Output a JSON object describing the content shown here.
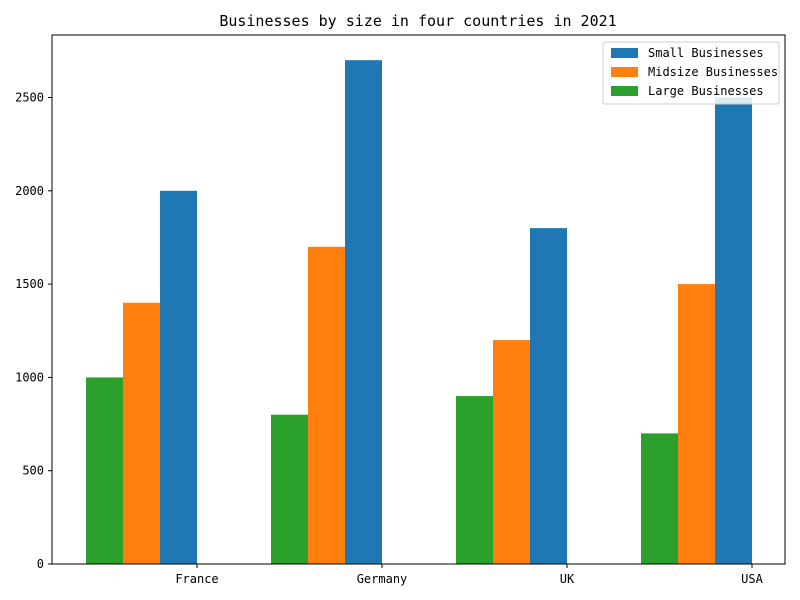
{
  "chart_data": {
    "type": "bar",
    "title": "Businesses by size in four countries in 2021",
    "xlabel": "",
    "ylabel": "",
    "categories": [
      "France",
      "Germany",
      "UK",
      "USA"
    ],
    "series": [
      {
        "name": "Large Businesses",
        "values": [
          1000,
          800,
          900,
          700
        ],
        "color": "#2ca02c"
      },
      {
        "name": "Midsize Businesses",
        "values": [
          1400,
          1700,
          1200,
          1500
        ],
        "color": "#ff7f0e"
      },
      {
        "name": "Small Businesses",
        "values": [
          2000,
          2700,
          1800,
          2500
        ],
        "color": "#1f77b4"
      }
    ],
    "legend_order": [
      "Small Businesses",
      "Midsize Businesses",
      "Large Businesses"
    ],
    "legend_position": "top-right",
    "ylim": [
      0,
      2835
    ],
    "yticks": [
      0,
      500,
      1000,
      1500,
      2000,
      2500
    ],
    "grid": false
  }
}
